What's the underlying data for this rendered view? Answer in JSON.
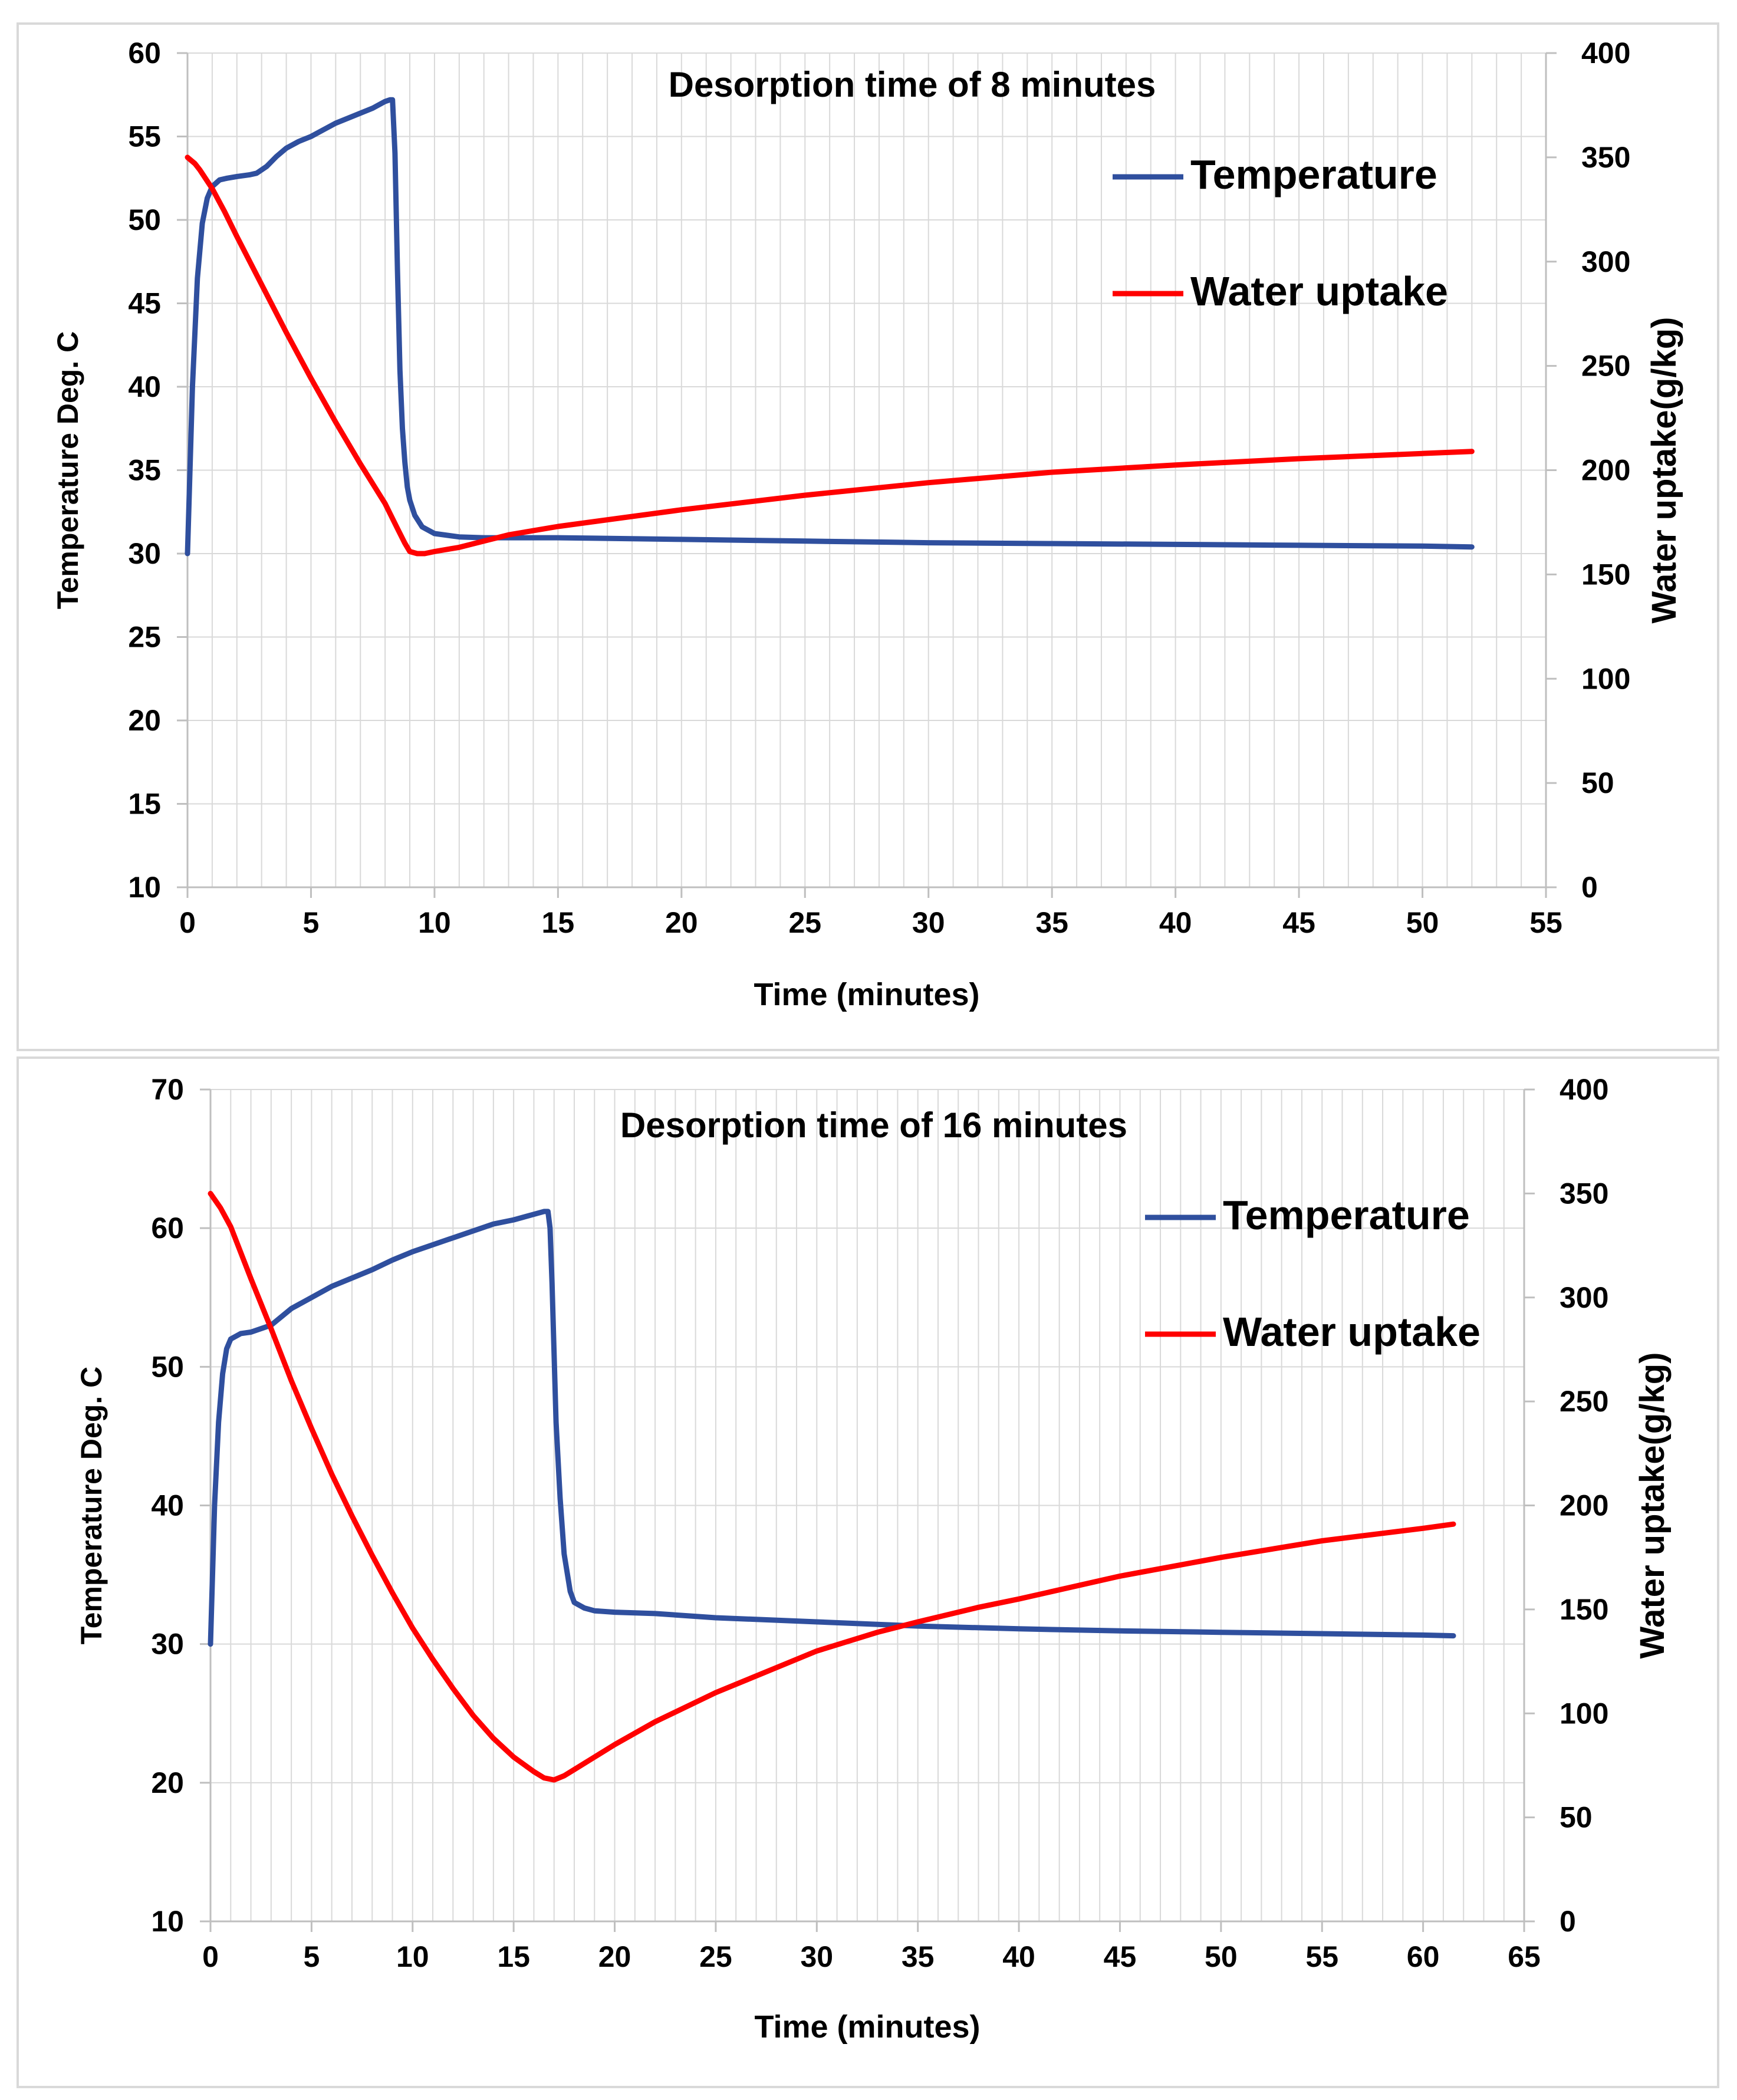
{
  "colors": {
    "temperature": "#2f4f9e",
    "water_uptake": "#ff0000",
    "grid": "#d9d9d9",
    "axis": "#bfbfbf"
  },
  "chart_data": [
    {
      "type": "line",
      "title": "Desorption time of 8 minutes",
      "xlabel": "Time (minutes)",
      "ylabel": "Temperature Deg. C",
      "y2label": "Water uptake(g/kg)",
      "xlim": [
        0,
        55
      ],
      "ylim": [
        10,
        60
      ],
      "y2lim": [
        0,
        400
      ],
      "xticks": [
        0,
        5,
        10,
        15,
        20,
        25,
        30,
        35,
        40,
        45,
        50,
        55
      ],
      "yticks": [
        10,
        15,
        20,
        25,
        30,
        35,
        40,
        45,
        50,
        55,
        60
      ],
      "y2ticks": [
        0,
        50,
        100,
        150,
        200,
        250,
        300,
        350,
        400
      ],
      "legend_position": "top-right",
      "series": [
        {
          "name": "Temperature",
          "axis": "left",
          "x": [
            0,
            0.2,
            0.4,
            0.6,
            0.8,
            1.0,
            1.3,
            1.6,
            2.0,
            2.5,
            2.8,
            3.2,
            3.6,
            4.0,
            4.5,
            5.0,
            5.5,
            6.0,
            6.5,
            7.0,
            7.5,
            8.0,
            8.2,
            8.3,
            8.4,
            8.5,
            8.6,
            8.7,
            8.8,
            8.9,
            9.0,
            9.2,
            9.5,
            10.0,
            11.0,
            12.0,
            13.0,
            15.0,
            20.0,
            25.0,
            30.0,
            35.0,
            40.0,
            45.0,
            50.0,
            52.0
          ],
          "values": [
            30.0,
            40.0,
            46.5,
            49.8,
            51.3,
            52.0,
            52.4,
            52.5,
            52.6,
            52.7,
            52.8,
            53.2,
            53.8,
            54.3,
            54.7,
            55.0,
            55.4,
            55.8,
            56.1,
            56.4,
            56.7,
            57.1,
            57.2,
            57.2,
            54.0,
            47.0,
            41.0,
            37.5,
            35.5,
            34.0,
            33.2,
            32.3,
            31.6,
            31.2,
            31.0,
            30.95,
            30.95,
            30.95,
            30.85,
            30.75,
            30.65,
            30.6,
            30.55,
            30.5,
            30.45,
            30.4
          ]
        },
        {
          "name": "Water uptake",
          "axis": "right",
          "x": [
            0,
            0.3,
            0.5,
            1.0,
            1.5,
            2.0,
            3.0,
            4.0,
            5.0,
            6.0,
            7.0,
            8.0,
            8.5,
            8.8,
            9.0,
            9.3,
            9.6,
            10.0,
            11.0,
            12.0,
            13.0,
            15.0,
            20.0,
            25.0,
            30.0,
            35.0,
            40.0,
            45.0,
            50.0,
            52.0
          ],
          "values": [
            350,
            347,
            344,
            335,
            324,
            312,
            289,
            266,
            244,
            223,
            203,
            184,
            172,
            165,
            161,
            160,
            160,
            161,
            163,
            166,
            169,
            173,
            181,
            188,
            194,
            199,
            202.5,
            205.5,
            208,
            209
          ]
        }
      ]
    },
    {
      "type": "line",
      "title": "Desorption time of 16 minutes",
      "xlabel": "Time (minutes)",
      "ylabel": "Temperature Deg. C",
      "y2label": "Water uptake(g/kg)",
      "xlim": [
        0,
        65
      ],
      "ylim": [
        10,
        70
      ],
      "y2lim": [
        0,
        400
      ],
      "xticks": [
        0,
        5,
        10,
        15,
        20,
        25,
        30,
        35,
        40,
        45,
        50,
        55,
        60,
        65
      ],
      "yticks": [
        10,
        20,
        30,
        40,
        50,
        60,
        70
      ],
      "y2ticks": [
        0,
        50,
        100,
        150,
        200,
        250,
        300,
        350,
        400
      ],
      "legend_position": "top-right",
      "series": [
        {
          "name": "Temperature",
          "axis": "left",
          "x": [
            0,
            0.2,
            0.4,
            0.6,
            0.8,
            1.0,
            1.5,
            2.0,
            3.0,
            4.0,
            5.0,
            6.0,
            7.0,
            8.0,
            9.0,
            10.0,
            11.0,
            12.0,
            13.0,
            14.0,
            15.0,
            16.0,
            16.5,
            16.7,
            16.8,
            16.9,
            17.0,
            17.1,
            17.3,
            17.5,
            17.8,
            18.0,
            18.5,
            19.0,
            20.0,
            22.0,
            25.0,
            30.0,
            35.0,
            40.0,
            45.0,
            50.0,
            55.0,
            60.0,
            61.5
          ],
          "values": [
            30.0,
            40.0,
            46.0,
            49.5,
            51.3,
            52.0,
            52.4,
            52.5,
            53.0,
            54.2,
            55.0,
            55.8,
            56.4,
            57.0,
            57.7,
            58.3,
            58.8,
            59.3,
            59.8,
            60.3,
            60.6,
            61.0,
            61.2,
            61.2,
            60.0,
            56.0,
            51.0,
            46.0,
            40.5,
            36.5,
            33.8,
            33.0,
            32.6,
            32.4,
            32.3,
            32.2,
            31.9,
            31.6,
            31.3,
            31.1,
            30.95,
            30.85,
            30.75,
            30.65,
            30.6
          ]
        },
        {
          "name": "Water uptake",
          "axis": "right",
          "x": [
            0,
            0.5,
            1.0,
            2.0,
            3.0,
            4.0,
            5.0,
            6.0,
            7.0,
            8.0,
            9.0,
            10.0,
            11.0,
            12.0,
            13.0,
            14.0,
            15.0,
            16.0,
            16.5,
            17.0,
            17.5,
            18.0,
            19.0,
            20.0,
            22.0,
            25.0,
            28.0,
            30.0,
            33.0,
            35.0,
            38.0,
            40.0,
            45.0,
            50.0,
            55.0,
            60.0,
            61.5
          ],
          "values": [
            350,
            343,
            334,
            309,
            285,
            260,
            237,
            215,
            195,
            176,
            158,
            141,
            126,
            112,
            99,
            88,
            79,
            72,
            69,
            68,
            70,
            73,
            79,
            85,
            96,
            110,
            122,
            130,
            139,
            144,
            151,
            155,
            166,
            175,
            183,
            189,
            191
          ]
        }
      ]
    }
  ]
}
